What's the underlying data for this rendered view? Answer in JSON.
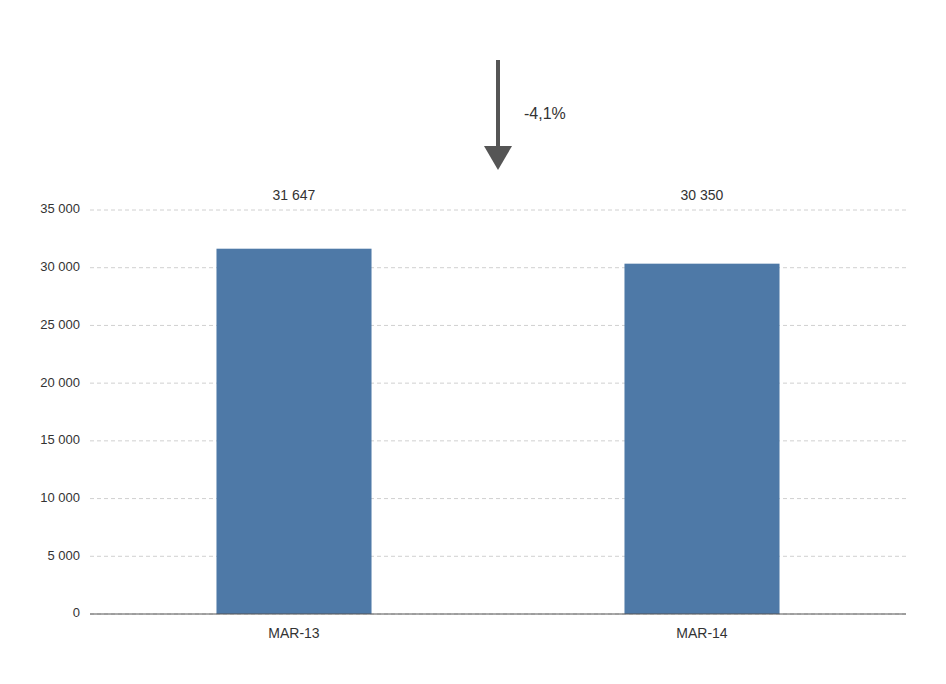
{
  "chart_data": {
    "type": "bar",
    "categories": [
      "MAR-13",
      "MAR-14"
    ],
    "values": [
      31647,
      30350
    ],
    "value_labels": [
      "31 647",
      "30 350"
    ],
    "data_labels": true,
    "annotation": "-4,1%",
    "ylim": [
      0,
      35000
    ],
    "yticks": [
      0,
      {
        "value": 5000,
        "label": "5 000"
      },
      {
        "value": 10000,
        "label": "10 000"
      },
      {
        "value": 15000,
        "label": "15 000"
      },
      {
        "value": 20000,
        "label": "20 000"
      },
      {
        "value": 25000,
        "label": "25 000"
      },
      {
        "value": 30000,
        "label": "30 000"
      },
      {
        "value": 35000,
        "label": "35 000"
      }
    ],
    "grid": true
  }
}
